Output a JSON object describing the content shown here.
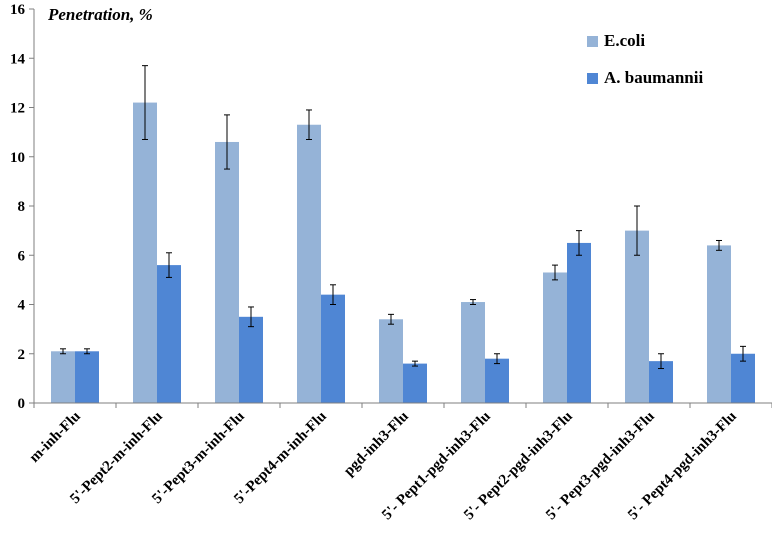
{
  "chart_data": {
    "type": "bar",
    "title": "",
    "xlabel": "",
    "ylabel": "Penetration, %",
    "ylim": [
      0,
      16
    ],
    "yticks": [
      0,
      2,
      4,
      6,
      8,
      10,
      12,
      14,
      16
    ],
    "grid": false,
    "legend_position": "top-right",
    "categories": [
      "m-inh-Flu",
      "5'-Pept2-m-inh-Flu",
      "5'-Pept3-m-inh-Flu",
      "5'-Pept4-m-inh-Flu",
      "pgd-inh3-Flu",
      "5'- Pept1-pgd-inh3-Flu",
      "5'- Pept2-pgd-inh3-Flu",
      "5'- Pept3-pgd-inh3-Flu",
      "5'- Pept4-pgd-inh3-Flu"
    ],
    "series": [
      {
        "name": "E.coli",
        "color": "#95b3d7",
        "values": [
          2.1,
          12.2,
          10.6,
          11.3,
          3.4,
          4.1,
          5.3,
          7.0,
          6.4
        ],
        "errors": [
          0.1,
          1.5,
          1.1,
          0.6,
          0.2,
          0.1,
          0.3,
          1.0,
          0.2
        ]
      },
      {
        "name": "A. baumannii",
        "color": "#4f86d4",
        "values": [
          2.1,
          5.6,
          3.5,
          4.4,
          1.6,
          1.8,
          6.5,
          1.7,
          2.0
        ],
        "errors": [
          0.1,
          0.5,
          0.4,
          0.4,
          0.1,
          0.2,
          0.5,
          0.3,
          0.3
        ]
      }
    ]
  }
}
